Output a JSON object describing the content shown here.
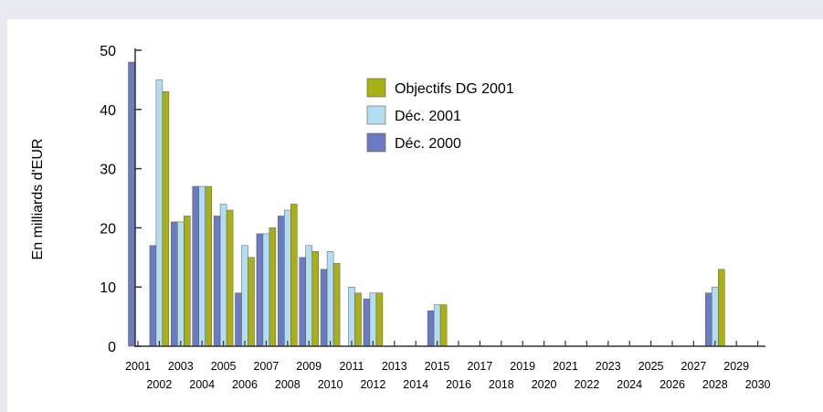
{
  "chart_data": {
    "type": "bar",
    "ylabel": "En milliards d'EUR",
    "ylim": [
      0,
      50
    ],
    "yticks": [
      0,
      10,
      20,
      30,
      40,
      50
    ],
    "grid": false,
    "legend_position": "top-center",
    "categories": [
      "2001",
      "2002",
      "2003",
      "2004",
      "2005",
      "2006",
      "2007",
      "2008",
      "2009",
      "2010",
      "2011",
      "2012",
      "2013",
      "2014",
      "2015",
      "2016",
      "2017",
      "2018",
      "2019",
      "2020",
      "2021",
      "2022",
      "2023",
      "2024",
      "2025",
      "2026",
      "2027",
      "2028",
      "2029",
      "2030"
    ],
    "series": [
      {
        "name": "Déc. 2000",
        "color": "#6b7bbf",
        "values": [
          48,
          17,
          21,
          27,
          22,
          9,
          19,
          22,
          15,
          13,
          0,
          8,
          0,
          0,
          6,
          0,
          0,
          0,
          0,
          0,
          0,
          0,
          0,
          0,
          0,
          0,
          0,
          9,
          0,
          0
        ]
      },
      {
        "name": "Déc. 2001",
        "color": "#b3def2",
        "values": [
          0,
          45,
          21,
          27,
          24,
          17,
          19,
          23,
          17,
          16,
          10,
          9,
          0,
          0,
          7,
          0,
          0,
          0,
          0,
          0,
          0,
          0,
          0,
          0,
          0,
          0,
          0,
          10,
          0,
          0
        ]
      },
      {
        "name": "Objectifs DG 2001",
        "color": "#a9b017",
        "values": [
          0,
          43,
          22,
          27,
          23,
          15,
          20,
          24,
          16,
          14,
          9,
          9,
          0,
          0,
          7,
          0,
          0,
          0,
          0,
          0,
          0,
          0,
          0,
          0,
          0,
          0,
          0,
          13,
          0,
          0
        ]
      }
    ]
  }
}
